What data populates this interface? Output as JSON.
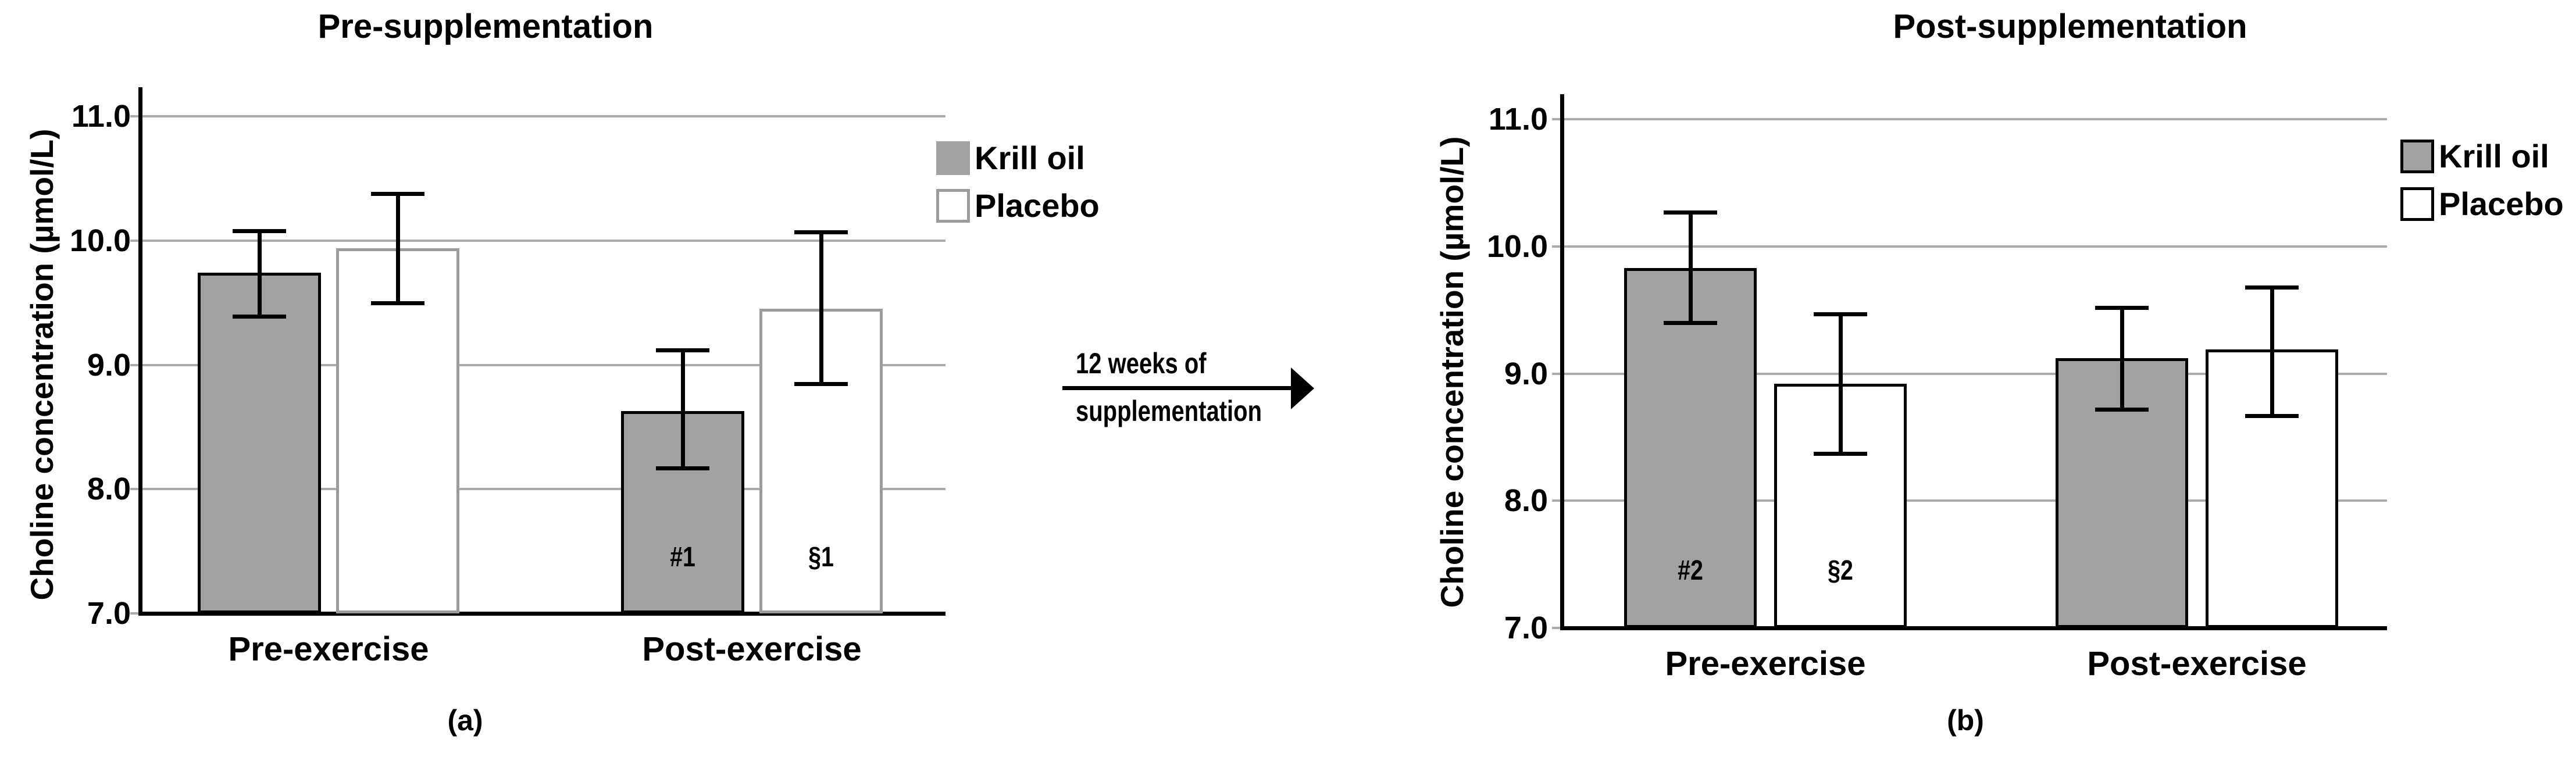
{
  "figure": {
    "description": "Two-panel bar figure of choline concentration before and after 12 weeks of supplementation",
    "arrow": {
      "label_line1": "12 weeks of",
      "label_line2": "supplementation"
    },
    "colors": {
      "krill_oil_fill": "#A2A2A2",
      "placebo_fill": "#FFFFFF",
      "gridline": "#ABABAB",
      "axis": "#000000"
    }
  },
  "axis": {
    "ticks": [
      {
        "label": "7.0",
        "value": 7.0
      },
      {
        "label": "8.0",
        "value": 8.0
      },
      {
        "label": "9.0",
        "value": 9.0
      },
      {
        "label": "10.0",
        "value": 10.0
      },
      {
        "label": "11.0",
        "value": 11.0
      }
    ]
  },
  "chart_data": [
    {
      "id": "a",
      "type": "bar",
      "title": "Pre-supplementation",
      "caption": "(a)",
      "xlabel": "",
      "ylabel": "Choline concentration (µmol/L)",
      "ylim": [
        7.0,
        11.2
      ],
      "grid": true,
      "legend_position": "top-right",
      "categories": [
        "Pre-exercise",
        "Post-exercise"
      ],
      "series": [
        {
          "name": "Krill oil",
          "fill": "#A2A2A2",
          "stroke": "#000000",
          "legend_stroke": "none",
          "values": [
            9.74,
            8.63
          ],
          "error_low": [
            9.39,
            8.17
          ],
          "error_high": [
            10.08,
            9.12
          ],
          "annotations": [
            "",
            "#1"
          ]
        },
        {
          "name": "Placebo",
          "fill": "#FFFFFF",
          "stroke": "#9B9B9B",
          "legend_stroke": "#9B9B9B",
          "values": [
            9.94,
            9.45
          ],
          "error_low": [
            9.5,
            8.85
          ],
          "error_high": [
            10.38,
            10.07
          ],
          "annotations": [
            "",
            "§1"
          ]
        }
      ]
    },
    {
      "id": "b",
      "type": "bar",
      "title": "Post-supplementation",
      "caption": "(b)",
      "xlabel": "",
      "ylabel": "Choline concentration (µmol/L)",
      "ylim": [
        7.0,
        11.2
      ],
      "grid": true,
      "legend_position": "top-right",
      "categories": [
        "Pre-exercise",
        "Post-exercise"
      ],
      "series": [
        {
          "name": "Krill oil",
          "fill": "#A2A2A2",
          "stroke": "#000000",
          "legend_stroke": "#000000",
          "values": [
            9.83,
            9.12
          ],
          "error_low": [
            9.4,
            8.72
          ],
          "error_high": [
            10.27,
            9.52
          ],
          "annotations": [
            "#2",
            ""
          ]
        },
        {
          "name": "Placebo",
          "fill": "#FFFFFF",
          "stroke": "#000000",
          "legend_stroke": "#000000",
          "values": [
            8.92,
            9.19
          ],
          "error_low": [
            8.37,
            8.67
          ],
          "error_high": [
            9.47,
            9.68
          ],
          "annotations": [
            "§2",
            ""
          ]
        }
      ]
    }
  ]
}
